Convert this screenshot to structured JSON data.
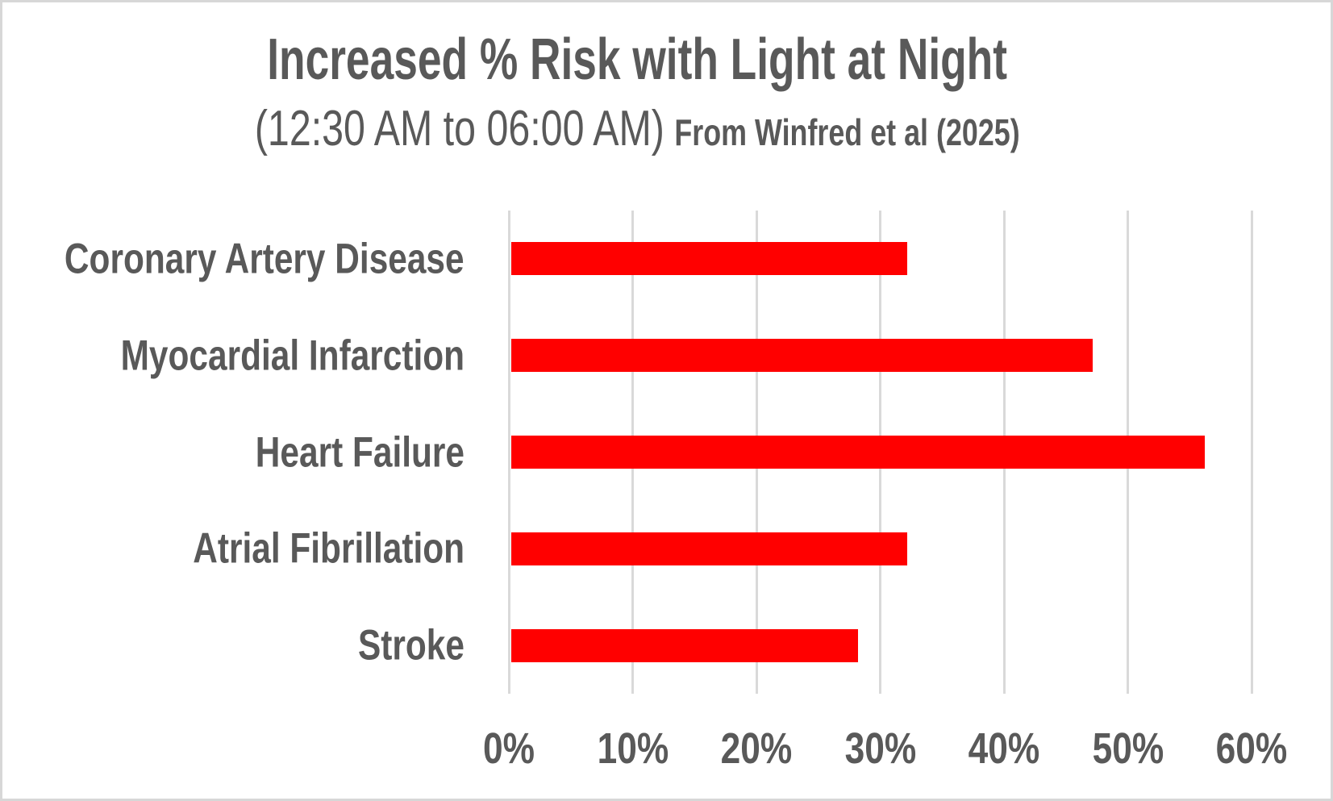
{
  "chart_data": {
    "type": "bar",
    "orientation": "horizontal",
    "title": "Increased % Risk with Light at Night",
    "subtitle": "(12:30 AM to 06:00 AM)",
    "source": "From Winfred et al (2025)",
    "categories": [
      "Coronary Artery Disease",
      "Myocardial Infarction",
      "Heart Failure",
      "Atrial Fibrillation",
      "Stroke"
    ],
    "values": [
      32,
      47,
      56,
      32,
      28
    ],
    "unit": "%",
    "xlabel": "",
    "ylabel": "",
    "xlim": [
      0,
      60
    ],
    "x_ticks": [
      0,
      10,
      20,
      30,
      40,
      50,
      60
    ],
    "x_tick_labels": [
      "0%",
      "10%",
      "20%",
      "30%",
      "40%",
      "50%",
      "60%"
    ],
    "grid": true,
    "legend": false,
    "colors": {
      "bar": "#FF0000",
      "gridline": "#D9D9D9",
      "text": "#595959",
      "background": "#FFFFFF",
      "frame_border": "#D7D7D7"
    }
  }
}
